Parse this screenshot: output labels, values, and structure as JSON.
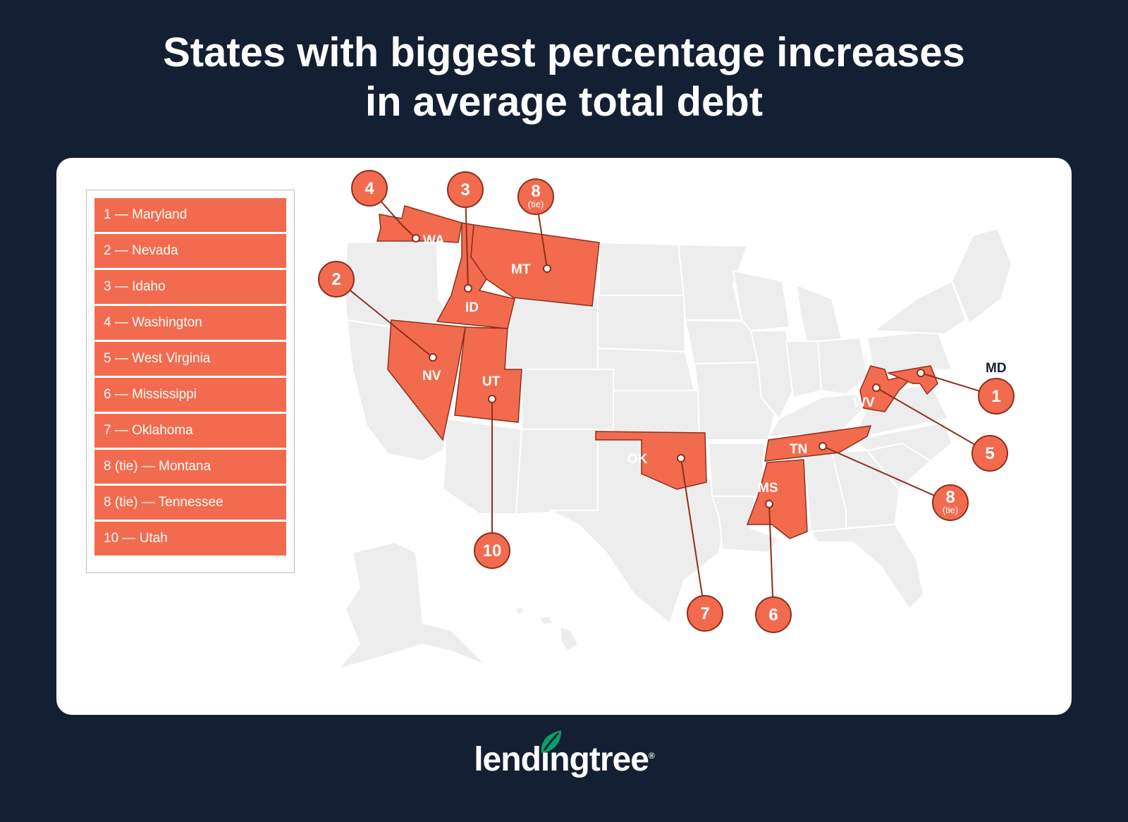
{
  "title_line1": "States with biggest percentage increases",
  "title_line2": "in average total debt",
  "legend": [
    "1 — Maryland",
    "2 — Nevada",
    "3 — Idaho",
    "4 — Washington",
    "5 — West Virginia",
    "6 — Mississippi",
    "7 — Oklahoma",
    "8 (tie) — Montana",
    "8 (tie) — Tennessee",
    "10 — Utah"
  ],
  "states": {
    "WA": {
      "label": "WA",
      "rank": "4",
      "tie": ""
    },
    "ID": {
      "label": "ID",
      "rank": "3",
      "tie": ""
    },
    "MT": {
      "label": "MT",
      "rank": "8",
      "tie": "(tie)"
    },
    "NV": {
      "label": "NV",
      "rank": "2",
      "tie": ""
    },
    "UT": {
      "label": "UT",
      "rank": "10",
      "tie": ""
    },
    "OK": {
      "label": "OK",
      "rank": "7",
      "tie": ""
    },
    "MS": {
      "label": "MS",
      "rank": "6",
      "tie": ""
    },
    "TN": {
      "label": "TN",
      "rank": "8",
      "tie": "(tie)"
    },
    "WV": {
      "label": "WV",
      "rank": "5",
      "tie": ""
    },
    "MD": {
      "label": "MD",
      "rank": "1",
      "tie": ""
    }
  },
  "colors": {
    "highlight": "#f26b4e",
    "outline": "#8c2f1c",
    "background": "#132033",
    "state_gray": "#ededed"
  },
  "logo": {
    "text": "lendingtree",
    "mark": "®"
  }
}
